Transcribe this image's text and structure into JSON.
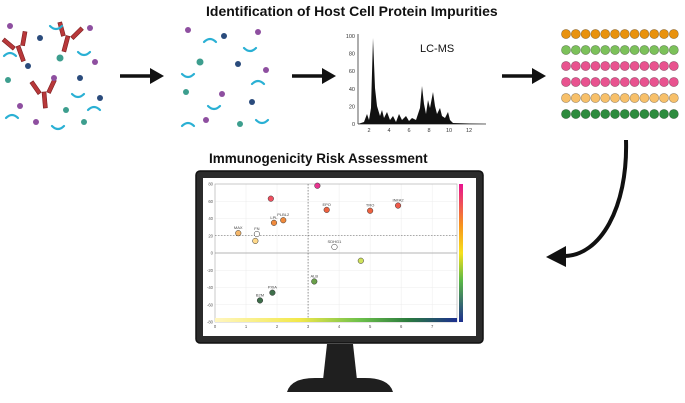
{
  "titles": {
    "top": "Identification of Host Cell Protein Impurities",
    "middle": "Immunogenicity Risk Assessment"
  },
  "lcms": {
    "label": "LC-MS",
    "y_ticks": [
      "100",
      "80",
      "60",
      "40",
      "20",
      "0"
    ],
    "x_ticks": [
      "2",
      "4",
      "6",
      "8",
      "10",
      "12"
    ]
  },
  "risk_plot": {
    "y_ticks": [
      "80",
      "60",
      "40",
      "20",
      "0",
      "-20",
      "-40",
      "-60",
      "-80"
    ],
    "x_ticks": [
      "0",
      "1",
      "2",
      "3",
      "4",
      "5",
      "6",
      "7"
    ],
    "points": [
      {
        "label": "",
        "x": 1.8,
        "y": 63,
        "color": "#ef4f5f"
      },
      {
        "label": "",
        "x": 3.3,
        "y": 78,
        "color": "#e8338f"
      },
      {
        "label": "PLBL2",
        "x": 2.2,
        "y": 38,
        "color": "#f08a3c"
      },
      {
        "label": "LPL",
        "x": 1.9,
        "y": 35,
        "color": "#f08a3c"
      },
      {
        "label": "EPO",
        "x": 3.6,
        "y": 50,
        "color": "#ef6240"
      },
      {
        "label": "TRO",
        "x": 5.0,
        "y": 49,
        "color": "#ef6240"
      },
      {
        "label": "INFA2",
        "x": 5.9,
        "y": 55,
        "color": "#ef5a4a"
      },
      {
        "label": "MAX",
        "x": 0.75,
        "y": 23,
        "color": "#f5b76a"
      },
      {
        "label": "FN",
        "x": 1.35,
        "y": 22,
        "color": "#ffffff"
      },
      {
        "label": "",
        "x": 1.3,
        "y": 14,
        "color": "#ffd98a"
      },
      {
        "label": "SDHG1",
        "x": 3.85,
        "y": 7,
        "color": "#ffffff"
      },
      {
        "label": "",
        "x": 4.7,
        "y": -9,
        "color": "#cfe25a"
      },
      {
        "label": "ALB",
        "x": 3.2,
        "y": -33,
        "color": "#6aa04a"
      },
      {
        "label": "PXIA",
        "x": 1.85,
        "y": -46,
        "color": "#3e6e4a"
      },
      {
        "label": "B2M",
        "x": 1.45,
        "y": -55,
        "color": "#3e6e4a"
      }
    ]
  },
  "bead_rows": [
    "#e8920e",
    "#7cc15a",
    "#e8538f",
    "#e8538f",
    "#f7c06a",
    "#2e8b3e"
  ]
}
